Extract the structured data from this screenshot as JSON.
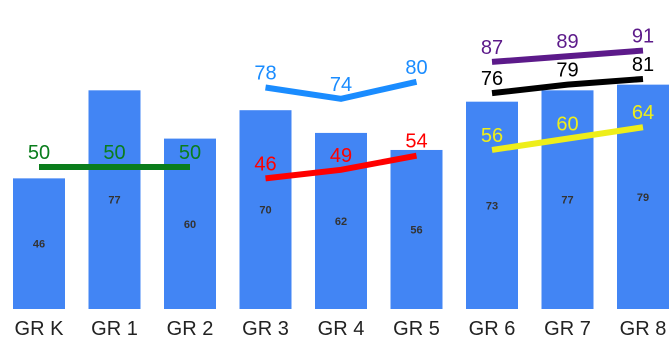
{
  "chart_data": {
    "type": "bar",
    "categories": [
      "GR K",
      "GR 1",
      "GR 2",
      "GR 3",
      "GR 4",
      "GR 5",
      "GR 6",
      "GR 7",
      "GR 8"
    ],
    "values": [
      46,
      77,
      60,
      70,
      62,
      56,
      73,
      77,
      79
    ],
    "bar_color": "#4285f4",
    "lines": [
      {
        "color": "#0a7d1c",
        "x_indices": [
          0,
          1,
          2
        ],
        "values": [
          50,
          50,
          50
        ]
      },
      {
        "color": "#ff0000",
        "x_indices": [
          3,
          4,
          5
        ],
        "values": [
          46,
          49,
          54
        ]
      },
      {
        "color": "#1a8cff",
        "x_indices": [
          3,
          4,
          5
        ],
        "values": [
          78,
          74,
          80
        ]
      },
      {
        "color": "#eeee1a",
        "x_indices": [
          6,
          7,
          8
        ],
        "values": [
          56,
          60,
          64
        ]
      },
      {
        "color": "#000000",
        "x_indices": [
          6,
          7,
          8
        ],
        "values": [
          76,
          79,
          81
        ]
      },
      {
        "color": "#5c1a8a",
        "x_indices": [
          6,
          7,
          8
        ],
        "values": [
          87,
          89,
          91
        ]
      }
    ],
    "title": "",
    "xlabel": "",
    "ylabel": "",
    "grid": false
  }
}
